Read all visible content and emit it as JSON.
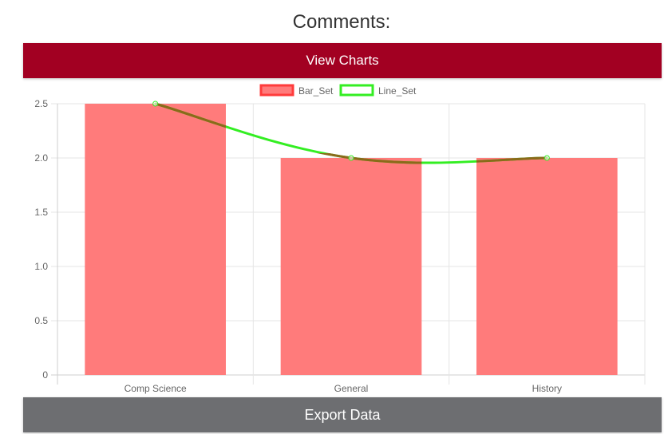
{
  "page": {
    "heading": "Comments:",
    "view_button_label": "View Charts",
    "export_button_label": "Export Data"
  },
  "colors": {
    "primary_button": "#a20022",
    "secondary_button": "#6d6e71",
    "bar_fill": "#ff7b7b",
    "bar_border": "#ff3b3b",
    "line": "#33ee22",
    "overlap_line": "#8a6a1a",
    "grid": "#e5e5e5",
    "tick_text": "#666666"
  },
  "chart_data": {
    "type": "bar",
    "categories": [
      "Comp Science",
      "General",
      "History"
    ],
    "series": [
      {
        "name": "Bar_Set",
        "type": "bar",
        "values": [
          2.5,
          2.0,
          2.0
        ]
      },
      {
        "name": "Line_Set",
        "type": "line",
        "values": [
          2.5,
          2.0,
          2.0
        ]
      }
    ],
    "ylim": [
      0,
      2.5
    ],
    "yticks": [
      "0",
      "0.5",
      "1.0",
      "1.5",
      "2.0",
      "2.5"
    ],
    "grid": true,
    "legend": "top-center",
    "title": "",
    "xlabel": "",
    "ylabel": ""
  }
}
